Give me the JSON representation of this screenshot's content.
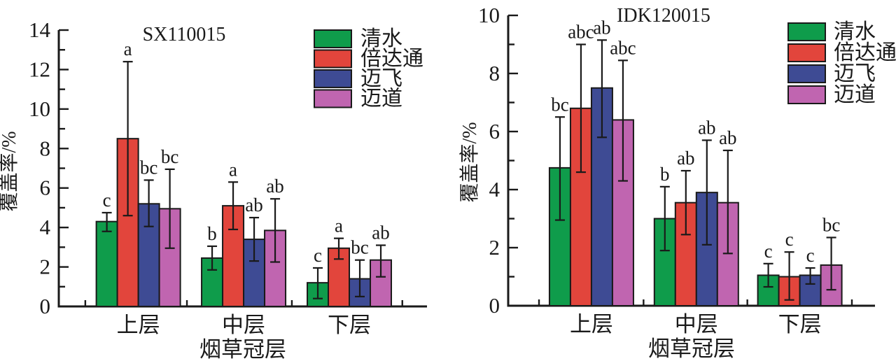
{
  "figure": {
    "background": "#ffffff",
    "axis_color": "#1a1a1a",
    "text_color": "#1a1a1a"
  },
  "chart_data": [
    {
      "type": "bar",
      "title": "SX110015",
      "ylabel": "覆盖率/%",
      "xlabel": "烟草冠层",
      "categories": [
        "上层",
        "中层",
        "下层"
      ],
      "ylim": [
        0,
        14
      ],
      "y_major_ticks": [
        0,
        2,
        4,
        6,
        8,
        10,
        12,
        14
      ],
      "y_minor_ticks": [
        1,
        3,
        5,
        7,
        9,
        11,
        13
      ],
      "grid": "off",
      "legend_position": "top-right",
      "error_bars": "on",
      "series": [
        {
          "name": "清水",
          "color": "#0f9c4b",
          "values": [
            4.3,
            2.45,
            1.2
          ],
          "err_lo": [
            3.8,
            1.85,
            0.4
          ],
          "err_hi": [
            4.75,
            3.05,
            1.95
          ],
          "letters": [
            "c",
            "b",
            "c"
          ]
        },
        {
          "name": "倍达通",
          "color": "#e2453c",
          "values": [
            8.5,
            5.1,
            2.95
          ],
          "err_lo": [
            4.6,
            3.9,
            2.4
          ],
          "err_hi": [
            12.4,
            6.3,
            3.45
          ],
          "letters": [
            "a",
            "a",
            "a"
          ]
        },
        {
          "name": "迈飞",
          "color": "#3e4b94",
          "values": [
            5.2,
            3.4,
            1.4
          ],
          "err_lo": [
            4.05,
            2.3,
            0.5
          ],
          "err_hi": [
            6.4,
            4.5,
            2.35
          ],
          "letters": [
            "bc",
            "ab",
            "bc"
          ]
        },
        {
          "name": "迈道",
          "color": "#c065b0",
          "values": [
            4.95,
            3.85,
            2.35
          ],
          "err_lo": [
            2.95,
            2.25,
            1.5
          ],
          "err_hi": [
            6.95,
            5.45,
            3.1
          ],
          "letters": [
            "bc",
            "ab",
            "ab"
          ]
        }
      ]
    },
    {
      "type": "bar",
      "title": "IDK120015",
      "ylabel": "覆盖率/%",
      "xlabel": "烟草冠层",
      "categories": [
        "上层",
        "中层",
        "下层"
      ],
      "ylim": [
        0,
        10
      ],
      "y_major_ticks": [
        0,
        2,
        4,
        6,
        8,
        10
      ],
      "y_minor_ticks": [
        1,
        3,
        5,
        7,
        9
      ],
      "grid": "off",
      "legend_position": "top-right",
      "error_bars": "on",
      "series": [
        {
          "name": "清水",
          "color": "#0f9c4b",
          "values": [
            4.75,
            3.0,
            1.05
          ],
          "err_lo": [
            2.95,
            1.9,
            0.65
          ],
          "err_hi": [
            6.5,
            4.1,
            1.45
          ],
          "letters": [
            "bc",
            "b",
            "c"
          ]
        },
        {
          "name": "倍达通",
          "color": "#e2453c",
          "values": [
            6.8,
            3.55,
            1.0
          ],
          "err_lo": [
            4.6,
            2.45,
            0.2
          ],
          "err_hi": [
            9.0,
            4.65,
            1.85
          ],
          "letters": [
            "abc",
            "ab",
            "c"
          ]
        },
        {
          "name": "迈飞",
          "color": "#3e4b94",
          "values": [
            7.5,
            3.9,
            1.05
          ],
          "err_lo": [
            5.8,
            2.1,
            0.75
          ],
          "err_hi": [
            9.15,
            5.7,
            1.3
          ],
          "letters": [
            "ab",
            "ab",
            "c"
          ]
        },
        {
          "name": "迈道",
          "color": "#c065b0",
          "values": [
            6.4,
            3.55,
            1.4
          ],
          "err_lo": [
            4.3,
            1.8,
            0.55
          ],
          "err_hi": [
            8.45,
            5.35,
            2.35
          ],
          "letters": [
            "abc",
            "ab",
            "bc"
          ]
        }
      ]
    }
  ]
}
